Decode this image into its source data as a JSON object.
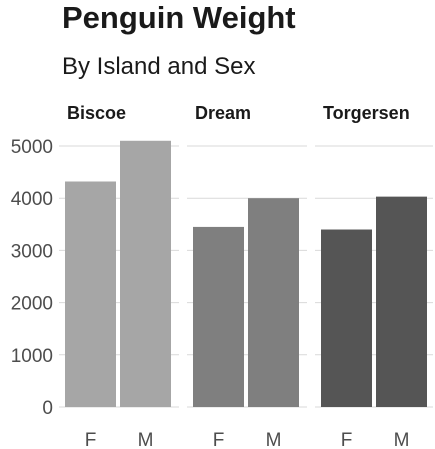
{
  "title": "Penguin Weight",
  "subtitle": "By Island and Sex",
  "chart_data": {
    "type": "bar",
    "facet_by": "island",
    "title": "Penguin Weight",
    "subtitle": "By Island and Sex",
    "xlabel": "",
    "ylabel": "",
    "ylim": [
      0,
      5200
    ],
    "y_ticks": [
      0,
      1000,
      2000,
      3000,
      4000,
      5000
    ],
    "grid": true,
    "legend": "none",
    "categories": [
      "F",
      "M"
    ],
    "facets": [
      {
        "name": "Biscoe",
        "color": "#a6a6a6",
        "values": [
          4320,
          5100
        ]
      },
      {
        "name": "Dream",
        "color": "#7f7f7f",
        "values": [
          3450,
          4000
        ]
      },
      {
        "name": "Torgersen",
        "color": "#555555",
        "values": [
          3400,
          4030
        ]
      }
    ]
  }
}
